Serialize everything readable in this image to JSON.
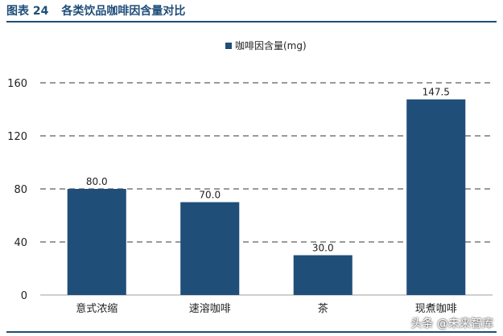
{
  "figure": {
    "label": "图表 24",
    "title": "各类饮品咖啡因含量对比"
  },
  "chart_data": {
    "type": "bar",
    "categories": [
      "意式浓缩",
      "速溶咖啡",
      "茶",
      "现煮咖啡"
    ],
    "series": [
      {
        "name": "咖啡因含量(mg)",
        "values": [
          80.0,
          70.0,
          30.0,
          147.5
        ],
        "color": "#1f4e79"
      }
    ],
    "value_labels": [
      "80.0",
      "70.0",
      "30.0",
      "147.5"
    ],
    "title": "",
    "xlabel": "",
    "ylabel": "",
    "ylim": [
      0,
      160
    ],
    "yticks": [
      "0",
      "40",
      "80",
      "120",
      "160"
    ],
    "grid": true,
    "legend_position": "top-center"
  },
  "watermark": "头条 @未来智库"
}
